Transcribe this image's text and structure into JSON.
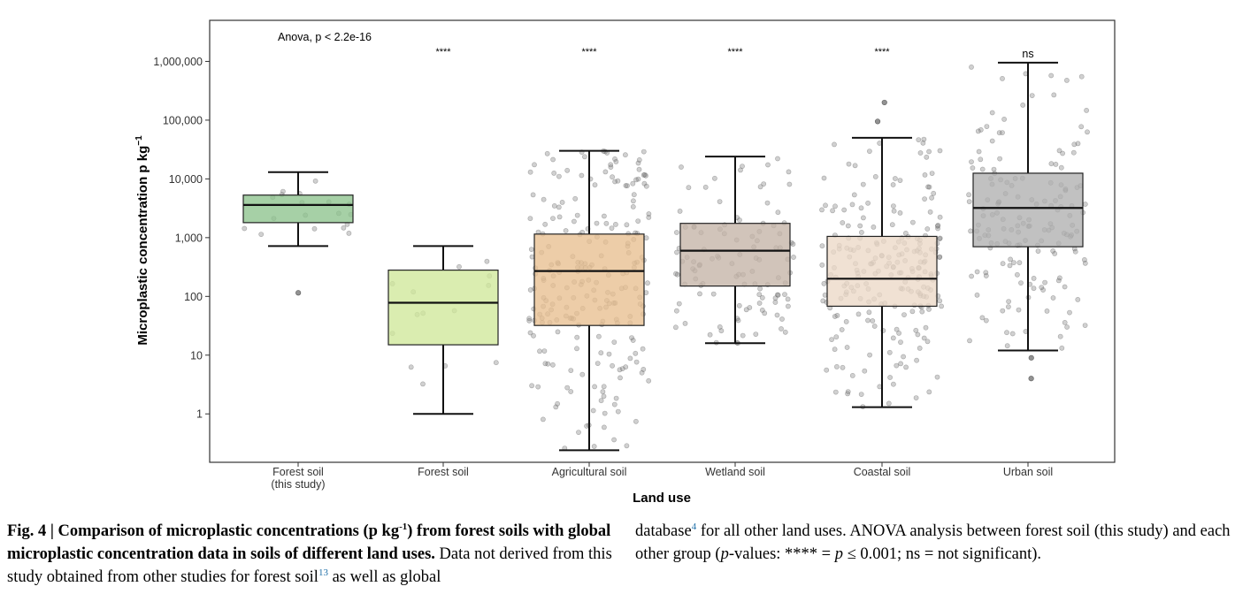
{
  "chart_data": {
    "type": "boxplot",
    "title": "",
    "xlabel": "Land use",
    "ylabel": "Microplastic concentration p kg",
    "ylabel_superscript": "−1",
    "yscale": "log",
    "ylim": [
      0.15,
      5000000
    ],
    "yticks": [
      1,
      10,
      100,
      1000,
      10000,
      100000,
      1000000
    ],
    "ytick_labels": [
      "1",
      "10",
      "100",
      "1,000",
      "10,000",
      "100,000",
      "1,000,000"
    ],
    "annotation": "Anova, p < 2.2e-16",
    "groups": [
      {
        "name": "Forest soil",
        "name2": "(this study)",
        "color": "#8dc38d",
        "q1": 1800,
        "median": 3600,
        "q3": 5300,
        "whisker_low": 720,
        "whisker_high": 13000,
        "outliers": [
          115
        ],
        "significance": "",
        "n_points": 18
      },
      {
        "name": "Forest soil",
        "name2": "",
        "color": "#d0e89a",
        "q1": 15,
        "median": 78,
        "q3": 280,
        "whisker_low": 1,
        "whisker_high": 720,
        "outliers": [],
        "significance": "****",
        "n_points": 14
      },
      {
        "name": "Agricultural soil",
        "name2": "",
        "color": "#e8bf90",
        "q1": 32,
        "median": 270,
        "q3": 1150,
        "whisker_low": 0.24,
        "whisker_high": 30000,
        "outliers": [],
        "significance": "****",
        "n_points": 230
      },
      {
        "name": "Wetland soil",
        "name2": "",
        "color": "#c4b4a6",
        "q1": 150,
        "median": 600,
        "q3": 1750,
        "whisker_low": 16,
        "whisker_high": 24000,
        "outliers": [],
        "significance": "****",
        "n_points": 110
      },
      {
        "name": "Coastal soil",
        "name2": "",
        "color": "#ecd8c6",
        "q1": 68,
        "median": 200,
        "q3": 1050,
        "whisker_low": 1.3,
        "whisker_high": 50000,
        "outliers": [
          200000,
          95000
        ],
        "significance": "****",
        "n_points": 230
      },
      {
        "name": "Urban soil",
        "name2": "",
        "color": "#b0b0b0",
        "q1": 700,
        "median": 3200,
        "q3": 12500,
        "whisker_low": 12,
        "whisker_high": 950000,
        "outliers": [
          9,
          4
        ],
        "significance": "ns",
        "n_points": 160
      }
    ]
  },
  "caption": {
    "fig_label": "Fig. 4 | Comparison of microplastic concentrations (p kg",
    "fig_sup": "-1",
    "fig_label_end": ") from forest soils with global microplastic concentration data in soils of different land uses.",
    "text1": " Data not derived from this study obtained from other studies for forest soil",
    "ref1": "13",
    "text2": " as well as global database",
    "ref2": "4",
    "text3": " for all other land uses. ANOVA analysis between forest soil (this study) and each other group (",
    "p_italic": "p",
    "text4": "-values: **** = ",
    "p_italic2": "p",
    "text5": " ≤ 0.001; ns = not significant)."
  }
}
